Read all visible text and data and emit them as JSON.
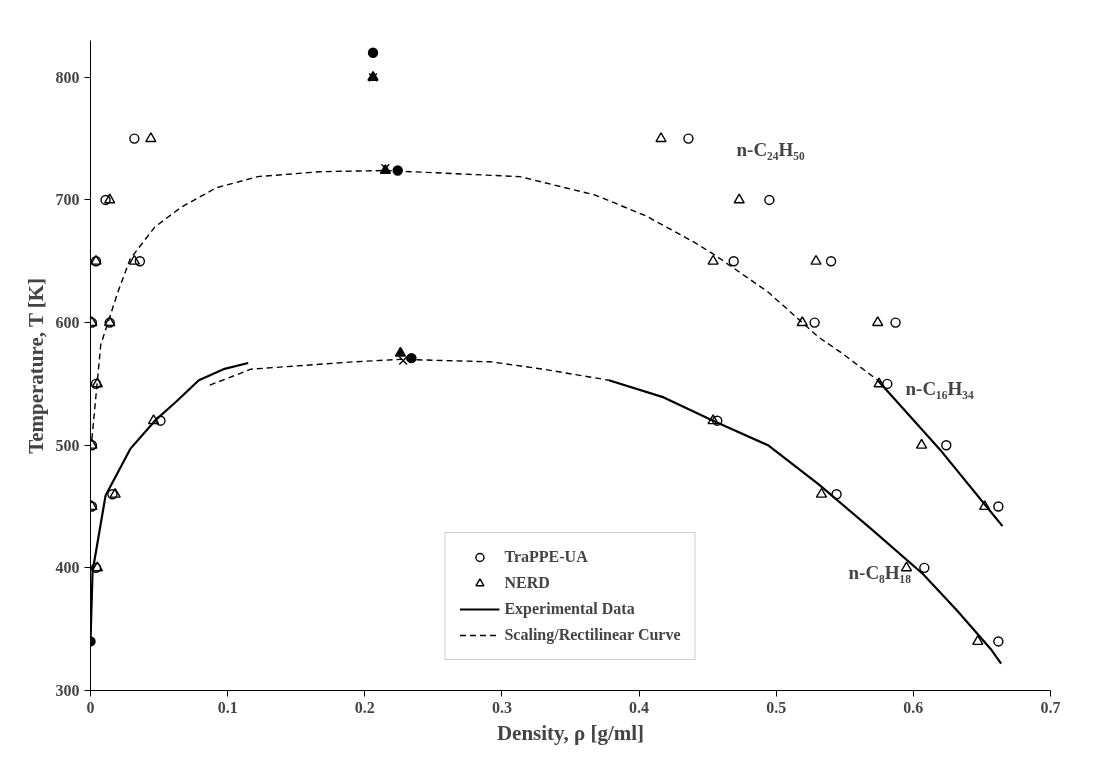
{
  "chart_data": {
    "type": "scatter",
    "xlabel": "Density, ρ [g/ml]",
    "ylabel": "Temperature, T [K]",
    "xlim": [
      0,
      0.7
    ],
    "ylim": [
      300,
      830
    ],
    "xticks": [
      0,
      0.1,
      0.2,
      0.3,
      0.4,
      0.5,
      0.6,
      0.7
    ],
    "yticks": [
      300,
      400,
      500,
      600,
      700,
      800
    ],
    "grid": false,
    "legend": "bottom",
    "annotations": [
      "n-C₂₄H₅₀",
      "n-C₁₆H₃₄",
      "n-C₈H₁₈"
    ],
    "series": [
      {
        "name": "TraPPE-UA",
        "marker": "circle",
        "color": "#000000",
        "x": [
          0.032,
          0.011,
          0.004,
          0.001,
          0.436,
          0.495,
          0.54,
          0.587,
          0.036,
          0.014,
          0.004,
          0.001,
          0.469,
          0.528,
          0.581,
          0.624,
          0.662,
          0.051,
          0.016,
          0.004,
          0.001,
          0.457,
          0.544,
          0.608,
          0.662
        ],
        "values": [
          750,
          700,
          650,
          600,
          750,
          700,
          650,
          600,
          650,
          600,
          550,
          500,
          650,
          600,
          550,
          500,
          450,
          520,
          460,
          400,
          450,
          520,
          460,
          400,
          340
        ]
      },
      {
        "name": "NERD",
        "marker": "triangle",
        "color": "#000000",
        "x": [
          0.044,
          0.014,
          0.004,
          0.001,
          0.416,
          0.473,
          0.529,
          0.574,
          0.032,
          0.014,
          0.005,
          0.001,
          0.454,
          0.519,
          0.575,
          0.606,
          0.652,
          0.046,
          0.018,
          0.005,
          0.001,
          0.454,
          0.533,
          0.595,
          0.647
        ],
        "values": [
          750,
          700,
          650,
          600,
          750,
          700,
          650,
          600,
          650,
          600,
          550,
          500,
          650,
          600,
          550,
          500,
          450,
          520,
          460,
          400,
          450,
          520,
          460,
          400,
          340
        ]
      },
      {
        "name": "Experimental Data",
        "type": "line",
        "line_style": "solid",
        "color": "#000000",
        "x": [
          0.0,
          0.0015,
          0.011,
          0.029,
          0.047,
          0.062,
          0.079,
          0.097,
          0.115
        ],
        "values": [
          340,
          397,
          459,
          497,
          520,
          535,
          553,
          562,
          567
        ]
      },
      {
        "name": "Scaling/Rectilinear Curve",
        "type": "line",
        "line_style": "dashed",
        "color": "#000000",
        "x": [
          0.001,
          0.0075,
          0.02,
          0.029,
          0.047,
          0.066,
          0.092,
          0.122,
          0.167,
          0.215,
          0.313,
          0.368,
          0.405,
          0.441,
          0.454,
          0.494,
          0.531,
          0.548,
          0.574
        ],
        "values": [
          505,
          582,
          625,
          652,
          678,
          694,
          710,
          719,
          723,
          724,
          719,
          704,
          687,
          665,
          656,
          625,
          588,
          575,
          553
        ]
      },
      {
        "type": "line",
        "line_style": "dashed",
        "color": "#000000",
        "x": [
          0.087,
          0.117,
          0.192,
          0.226,
          0.292,
          0.33,
          0.378
        ],
        "values": [
          549,
          562,
          568,
          570,
          568,
          562,
          553
        ]
      },
      {
        "type": "line",
        "line_style": "solid",
        "color": "#000000",
        "x": [
          0.378,
          0.418,
          0.454,
          0.494,
          0.531,
          0.569,
          0.607,
          0.632,
          0.657,
          0.664
        ],
        "values": [
          553,
          539,
          520,
          500,
          468,
          432,
          395,
          365,
          333,
          322
        ]
      },
      {
        "type": "line",
        "line_style": "solid",
        "color": "#000000",
        "x": [
          0.574,
          0.619,
          0.665
        ],
        "values": [
          553,
          497,
          434
        ]
      },
      {
        "marker": "circle",
        "color": "#000000",
        "x": [
          0.206,
          0.224,
          0.234,
          0.0
        ],
        "values": [
          820,
          724,
          571,
          340
        ]
      },
      {
        "marker": "triangle",
        "color": "#000000",
        "x": [
          0.206,
          0.215,
          0.226
        ],
        "values": [
          800,
          724,
          575
        ]
      },
      {
        "marker": "cross",
        "color": "#000000",
        "x": [
          0.206,
          0.215,
          0.228
        ],
        "values": [
          800,
          726,
          569
        ]
      }
    ]
  }
}
